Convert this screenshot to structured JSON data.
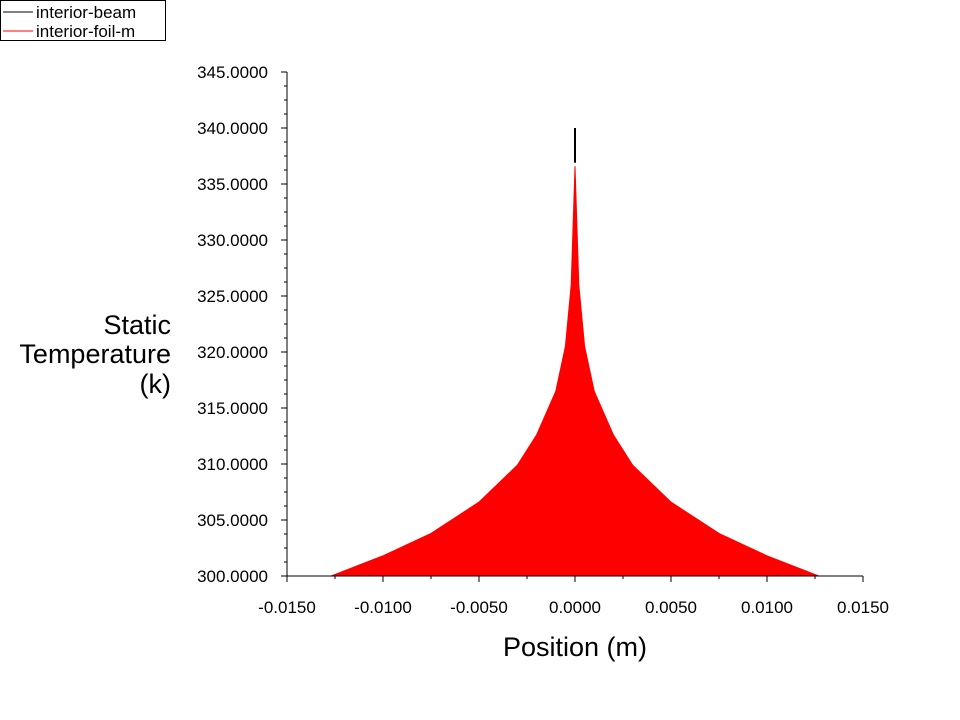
{
  "chart_data": {
    "type": "area",
    "xlabel": "Position (m)",
    "ylabel_lines": [
      "Static",
      "Temperature",
      "(k)"
    ],
    "xlim": [
      -0.015,
      0.015
    ],
    "ylim": [
      300,
      345
    ],
    "xticks": [
      {
        "value": -0.015,
        "label": "-0.0150"
      },
      {
        "value": -0.01,
        "label": "-0.0100"
      },
      {
        "value": -0.005,
        "label": "-0.0050"
      },
      {
        "value": 0.0,
        "label": "0.0000"
      },
      {
        "value": 0.005,
        "label": "0.0050"
      },
      {
        "value": 0.01,
        "label": "0.0100"
      },
      {
        "value": 0.015,
        "label": "0.0150"
      }
    ],
    "yticks": [
      {
        "value": 300,
        "label": "300.0000"
      },
      {
        "value": 305,
        "label": "305.0000"
      },
      {
        "value": 310,
        "label": "310.0000"
      },
      {
        "value": 315,
        "label": "315.0000"
      },
      {
        "value": 320,
        "label": "320.0000"
      },
      {
        "value": 325,
        "label": "325.0000"
      },
      {
        "value": 330,
        "label": "330.0000"
      },
      {
        "value": 335,
        "label": "335.0000"
      },
      {
        "value": 340,
        "label": "340.0000"
      },
      {
        "value": 345,
        "label": "345.0000"
      }
    ],
    "grid": false,
    "legend_position": "top-left",
    "series": [
      {
        "name": "interior-beam",
        "legend_label": "interior-beam",
        "color": "#000000",
        "style": "vertical-line",
        "x": 0.0,
        "y_range": [
          336.9,
          340.0
        ]
      },
      {
        "name": "interior-foil-m",
        "legend_label": "interior-foil-m",
        "color": "#ff0000",
        "style": "filled-area",
        "points": [
          [
            -0.0127,
            300.0
          ],
          [
            -0.01,
            301.8
          ],
          [
            -0.0075,
            303.8
          ],
          [
            -0.005,
            306.6
          ],
          [
            -0.003,
            309.9
          ],
          [
            -0.002,
            312.6
          ],
          [
            -0.001,
            316.5
          ],
          [
            -0.0005,
            320.5
          ],
          [
            -0.0002,
            326.0
          ],
          [
            0.0,
            336.6
          ],
          [
            0.0002,
            326.0
          ],
          [
            0.0005,
            320.5
          ],
          [
            0.001,
            316.5
          ],
          [
            0.002,
            312.6
          ],
          [
            0.003,
            309.9
          ],
          [
            0.005,
            306.6
          ],
          [
            0.0075,
            303.8
          ],
          [
            0.01,
            301.8
          ],
          [
            0.0127,
            300.0
          ]
        ]
      }
    ]
  }
}
